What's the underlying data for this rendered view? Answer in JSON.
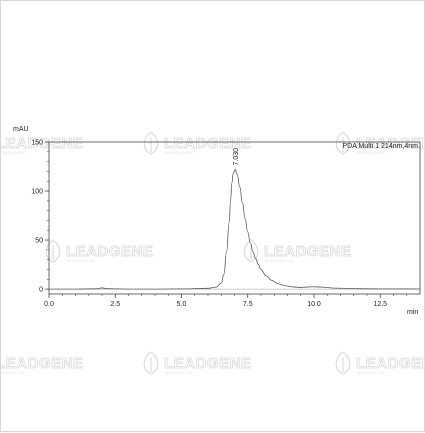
{
  "watermark": {
    "brand": "LEADGENE",
    "subtitle": "BIOMEDICAL INC",
    "color": "#dcdcdc"
  },
  "chart_data": {
    "type": "line",
    "title": "",
    "xlabel": "min",
    "ylabel": "mAU",
    "xlim": [
      0,
      14
    ],
    "ylim": [
      -5,
      150
    ],
    "x_ticks": [
      "0.0",
      "2.5",
      "5.0",
      "7.5",
      "10.0",
      "12.5"
    ],
    "x_tick_values": [
      0,
      2.5,
      5,
      7.5,
      10,
      12.5
    ],
    "y_ticks": [
      "0",
      "50",
      "100",
      "150"
    ],
    "y_tick_values": [
      0,
      50,
      100,
      150
    ],
    "legend": {
      "text": "PDA Multi 1 214nm,4nm",
      "placement": "top-right"
    },
    "grid": false,
    "line_color": "#555555",
    "peak_annotation": {
      "label": "7.030",
      "x": 7.03,
      "y": 122
    },
    "series": [
      {
        "x": [
          0,
          1.0,
          1.8,
          2.0,
          2.2,
          3.0,
          4.0,
          5.0,
          6.0,
          6.3,
          6.5,
          6.6,
          6.7,
          6.8,
          6.85,
          6.9,
          6.95,
          7.03,
          7.1,
          7.2,
          7.3,
          7.4,
          7.5,
          7.6,
          7.7,
          7.8,
          7.9,
          8.0,
          8.2,
          8.4,
          8.6,
          8.8,
          9.0,
          9.2,
          9.5,
          9.8,
          10.0,
          10.3,
          10.8,
          11.5,
          12.0,
          13.0,
          14.0
        ],
        "y": [
          0,
          0,
          0.3,
          1.2,
          0.4,
          0,
          0,
          0.2,
          0.8,
          2,
          6,
          15,
          38,
          68,
          90,
          108,
          118,
          122,
          117,
          104,
          88,
          72,
          58,
          47,
          38,
          31,
          25,
          20,
          13.5,
          9,
          6,
          4.2,
          3,
          2.2,
          1.7,
          2.2,
          2.4,
          2,
          1,
          0.5,
          0.3,
          0.2,
          0.1
        ]
      }
    ]
  }
}
